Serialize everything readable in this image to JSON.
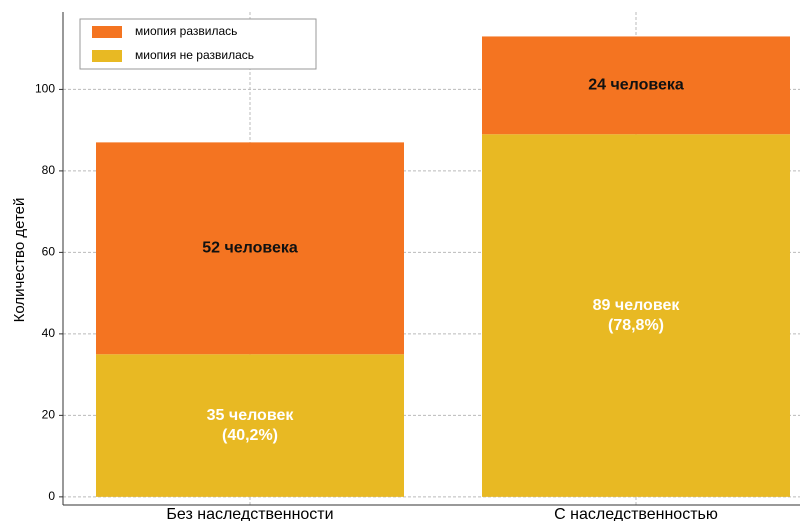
{
  "chart_data": {
    "type": "stacked_bar",
    "y_label": "Количество детей",
    "categories": [
      "Без наследственности",
      "С наследственностью"
    ],
    "series": [
      {
        "name": "миопия не развилась",
        "color": "#e8b923",
        "label_color": "#ffffff",
        "values": [
          35,
          89
        ],
        "value_labels": [
          [
            "35 человек",
            "(40,2%)"
          ],
          [
            "89 человек",
            "(78,8%)"
          ]
        ]
      },
      {
        "name": "миопия развилась",
        "color": "#f47421",
        "label_color": "#111111",
        "values": [
          52,
          24
        ],
        "value_labels": [
          [
            "52 человека"
          ],
          [
            "24 человека"
          ]
        ]
      }
    ],
    "ylim": [
      -2,
      119
    ],
    "yticks": [
      0,
      20,
      40,
      60,
      80,
      100
    ],
    "grid": true,
    "legend": "upper left"
  }
}
